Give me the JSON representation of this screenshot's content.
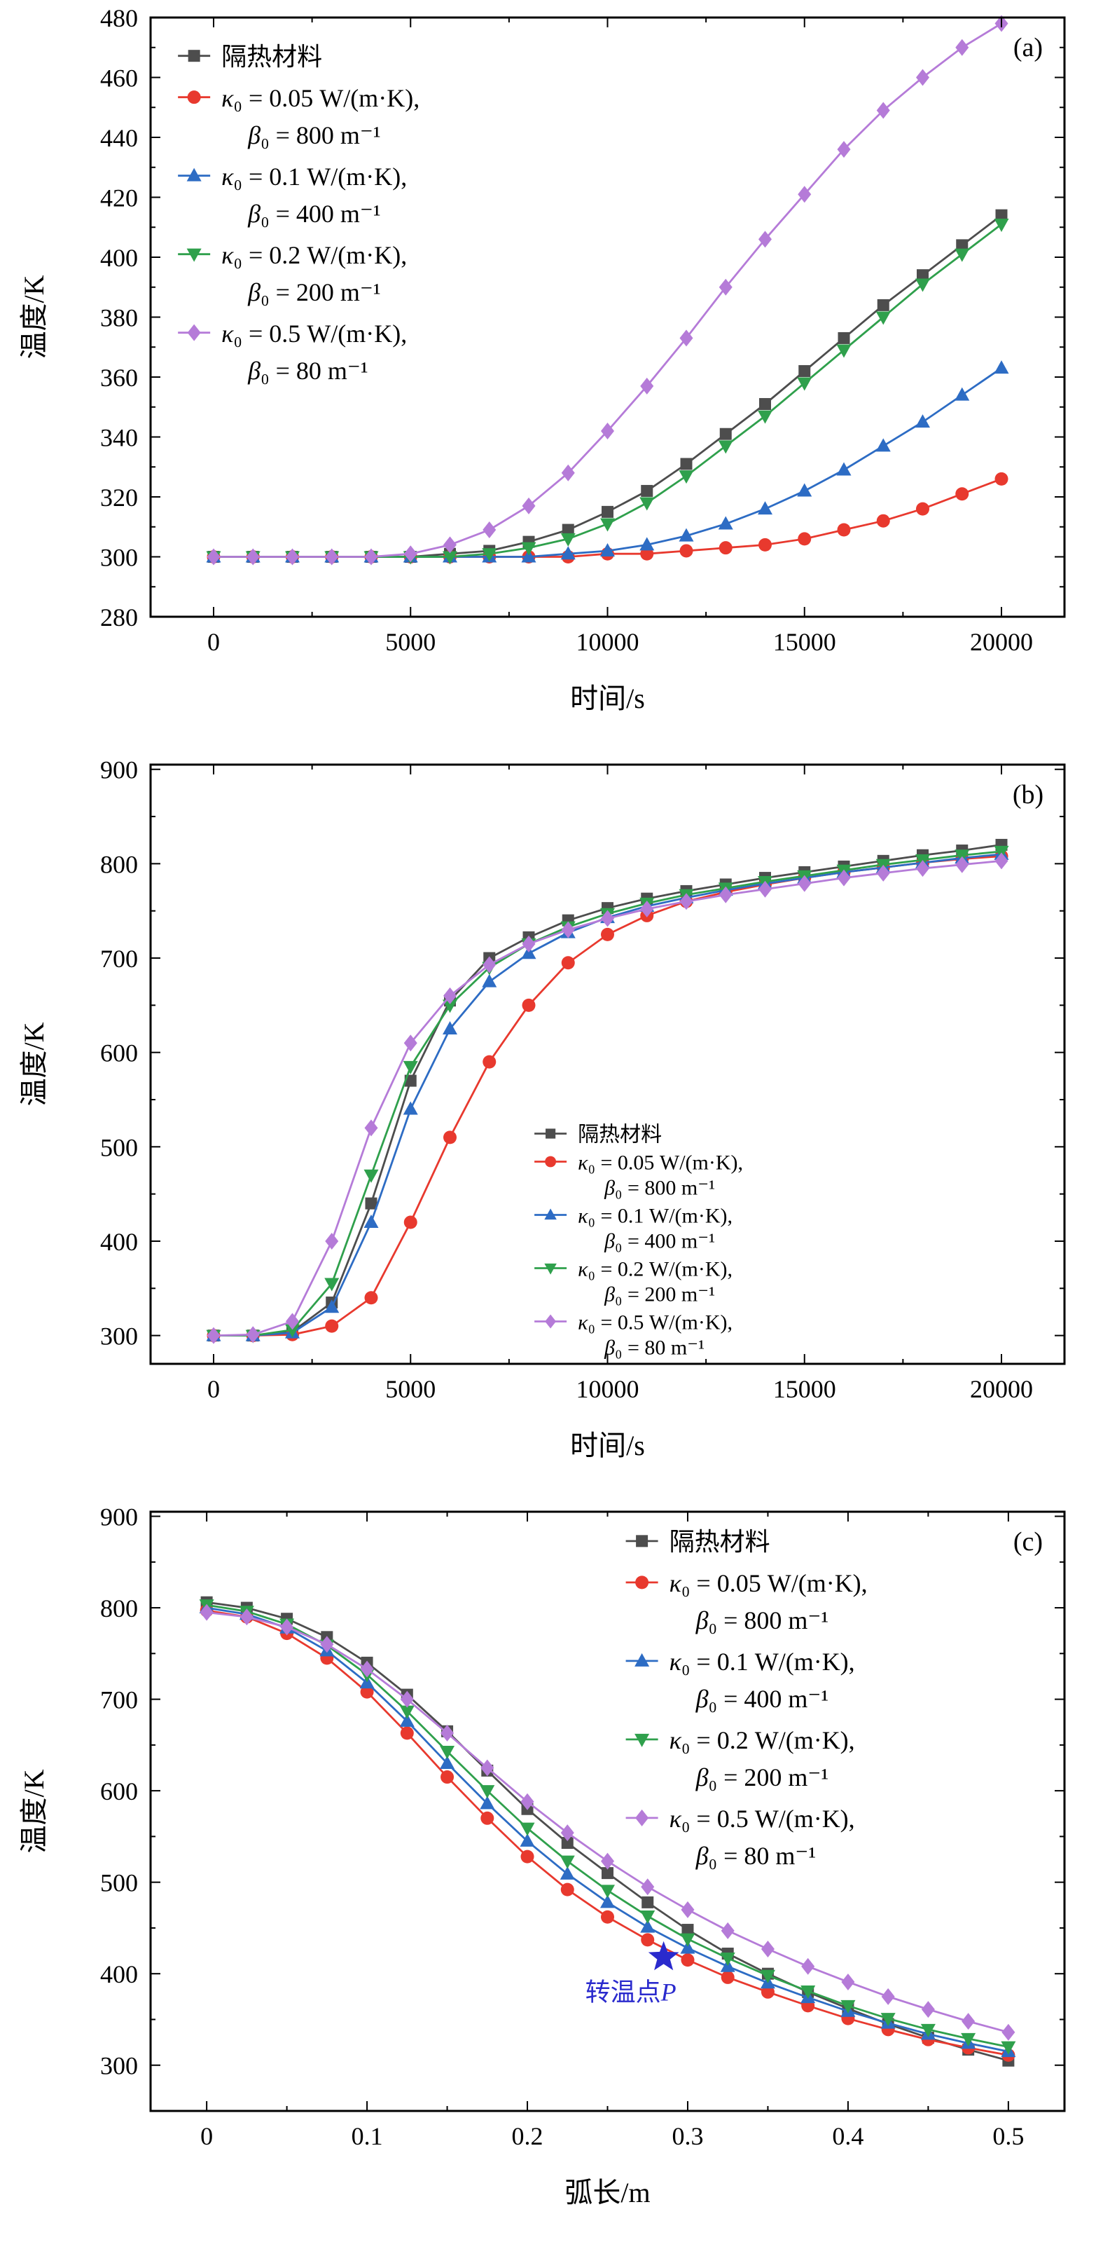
{
  "figure": {
    "background": "#ffffff",
    "axis_color": "#000000",
    "annotation_color": "#2a2acd"
  },
  "chart_data": [
    {
      "tag": "(a)",
      "type": "line",
      "xlabel": "时间/s",
      "ylabel": "温度/K",
      "xlim": [
        -1600,
        21600
      ],
      "ylim": [
        280,
        480
      ],
      "xticks": [
        0,
        5000,
        10000,
        15000,
        20000
      ],
      "yticks": [
        280,
        300,
        320,
        340,
        360,
        380,
        400,
        420,
        440,
        460,
        480
      ],
      "x_minor": 2500,
      "y_minor": 10,
      "x": [
        0,
        1000,
        2000,
        3000,
        4000,
        5000,
        6000,
        7000,
        8000,
        9000,
        10000,
        11000,
        12000,
        13000,
        14000,
        15000,
        16000,
        17000,
        18000,
        19000,
        20000
      ],
      "series": [
        {
          "name": "隔热材料",
          "color": "#4d4d4d",
          "marker": "square",
          "values": [
            300,
            300,
            300,
            300,
            300,
            300,
            301,
            302,
            305,
            309,
            315,
            322,
            331,
            341,
            351,
            362,
            373,
            384,
            394,
            404,
            414
          ]
        },
        {
          "name": "κ₀ = 0.05 W/(m·K), β₀ = 800 m⁻¹",
          "color": "#e8392e",
          "marker": "circle",
          "values": [
            300,
            300,
            300,
            300,
            300,
            300,
            300,
            300,
            300,
            300,
            301,
            301,
            302,
            303,
            304,
            306,
            309,
            312,
            316,
            321,
            326
          ]
        },
        {
          "name": "κ₀ = 0.1 W/(m·K), β₀ = 400 m⁻¹",
          "color": "#2d6cc4",
          "marker": "triangle-up",
          "values": [
            300,
            300,
            300,
            300,
            300,
            300,
            300,
            300,
            300,
            301,
            302,
            304,
            307,
            311,
            316,
            322,
            329,
            337,
            345,
            354,
            363
          ]
        },
        {
          "name": "κ₀ = 0.2 W/(m·K), β₀ = 200 m⁻¹",
          "color": "#2fa04c",
          "marker": "triangle-down",
          "values": [
            300,
            300,
            300,
            300,
            300,
            300,
            300,
            301,
            303,
            306,
            311,
            318,
            327,
            337,
            347,
            358,
            369,
            380,
            391,
            401,
            411
          ]
        },
        {
          "name": "κ₀ = 0.5 W/(m·K), β₀ = 80 m⁻¹",
          "color": "#b57bd8",
          "marker": "diamond",
          "values": [
            300,
            300,
            300,
            300,
            300,
            301,
            304,
            309,
            317,
            328,
            342,
            357,
            373,
            390,
            406,
            421,
            436,
            449,
            460,
            470,
            478
          ]
        }
      ],
      "legend": {
        "x": 0.03,
        "y": 0.045,
        "font": 36,
        "line_h": 53,
        "item_gap": 6,
        "items": [
          {
            "series": 0,
            "lines": [
              "隔热材料"
            ]
          },
          {
            "series": 1,
            "lines": [
              "κ₀ = 0.05 W/(m·K),",
              "β₀ = 800 m⁻¹"
            ]
          },
          {
            "series": 2,
            "lines": [
              "κ₀ = 0.1 W/(m·K),",
              "β₀ = 400 m⁻¹"
            ]
          },
          {
            "series": 3,
            "lines": [
              "κ₀ = 0.2 W/(m·K),",
              "β₀ = 200 m⁻¹"
            ]
          },
          {
            "series": 4,
            "lines": [
              "κ₀ = 0.5 W/(m·K),",
              "β₀ = 80 m⁻¹"
            ]
          }
        ]
      }
    },
    {
      "tag": "(b)",
      "type": "line",
      "xlabel": "时间/s",
      "ylabel": "温度/K",
      "xlim": [
        -1600,
        21600
      ],
      "ylim": [
        270,
        905
      ],
      "xticks": [
        0,
        5000,
        10000,
        15000,
        20000
      ],
      "yticks": [
        300,
        400,
        500,
        600,
        700,
        800,
        900
      ],
      "x_minor": 2500,
      "y_minor": 50,
      "x": [
        0,
        1000,
        2000,
        3000,
        4000,
        5000,
        6000,
        7000,
        8000,
        9000,
        10000,
        11000,
        12000,
        13000,
        14000,
        15000,
        16000,
        17000,
        18000,
        19000,
        20000
      ],
      "series": [
        {
          "name": "隔热材料",
          "color": "#4d4d4d",
          "marker": "square",
          "values": [
            300,
            300,
            304,
            335,
            440,
            570,
            655,
            700,
            722,
            740,
            753,
            763,
            771,
            778,
            785,
            791,
            797,
            803,
            809,
            814,
            820
          ]
        },
        {
          "name": "κ₀ = 0.05 W/(m·K), β₀ = 800 m⁻¹",
          "color": "#e8392e",
          "marker": "circle",
          "values": [
            300,
            300,
            301,
            310,
            340,
            420,
            510,
            590,
            650,
            695,
            725,
            745,
            760,
            770,
            778,
            785,
            791,
            796,
            801,
            805,
            808
          ]
        },
        {
          "name": "κ₀ = 0.1 W/(m·K), β₀ = 400 m⁻¹",
          "color": "#2d6cc4",
          "marker": "triangle-up",
          "values": [
            300,
            300,
            303,
            330,
            420,
            540,
            625,
            675,
            705,
            727,
            743,
            755,
            764,
            772,
            779,
            785,
            791,
            796,
            801,
            806,
            810
          ]
        },
        {
          "name": "κ₀ = 0.2 W/(m·K), β₀ = 200 m⁻¹",
          "color": "#2fa04c",
          "marker": "triangle-down",
          "values": [
            300,
            300,
            306,
            355,
            470,
            585,
            650,
            690,
            715,
            733,
            747,
            758,
            767,
            774,
            781,
            787,
            793,
            799,
            804,
            809,
            813
          ]
        },
        {
          "name": "κ₀ = 0.5 W/(m·K), β₀ = 80 m⁻¹",
          "color": "#b57bd8",
          "marker": "diamond",
          "values": [
            300,
            301,
            315,
            400,
            520,
            610,
            660,
            693,
            715,
            730,
            742,
            752,
            760,
            767,
            773,
            779,
            785,
            790,
            795,
            799,
            803
          ]
        }
      ],
      "legend": {
        "x": 0.42,
        "y": 0.6,
        "font": 30,
        "line_h": 36,
        "item_gap": 4,
        "items": [
          {
            "series": 0,
            "lines": [
              "隔热材料"
            ]
          },
          {
            "series": 1,
            "lines": [
              "κ₀ = 0.05 W/(m·K),",
              "β₀ = 800 m⁻¹"
            ]
          },
          {
            "series": 2,
            "lines": [
              "κ₀ = 0.1 W/(m·K),",
              "β₀ = 400 m⁻¹"
            ]
          },
          {
            "series": 3,
            "lines": [
              "κ₀ = 0.2 W/(m·K),",
              "β₀ = 200 m⁻¹"
            ]
          },
          {
            "series": 4,
            "lines": [
              "κ₀ = 0.5 W/(m·K),",
              "β₀ = 80 m⁻¹"
            ]
          }
        ]
      }
    },
    {
      "tag": "(c)",
      "type": "line",
      "xlabel": "弧长/m",
      "ylabel": "温度/K",
      "xlim": [
        -0.035,
        0.535
      ],
      "ylim": [
        250,
        905
      ],
      "xticks": [
        0,
        0.1,
        0.2,
        0.3,
        0.4,
        0.5
      ],
      "yticks": [
        300,
        400,
        500,
        600,
        700,
        800,
        900
      ],
      "x_minor": 0.05,
      "y_minor": 50,
      "x": [
        0,
        0.025,
        0.05,
        0.075,
        0.1,
        0.125,
        0.15,
        0.175,
        0.2,
        0.225,
        0.25,
        0.275,
        0.3,
        0.325,
        0.35,
        0.375,
        0.4,
        0.425,
        0.45,
        0.475,
        0.5
      ],
      "series": [
        {
          "name": "隔热材料",
          "color": "#4d4d4d",
          "marker": "square",
          "values": [
            806,
            800,
            788,
            768,
            740,
            705,
            665,
            622,
            580,
            543,
            510,
            478,
            448,
            422,
            400,
            380,
            362,
            345,
            330,
            317,
            305
          ]
        },
        {
          "name": "κ₀ = 0.05 W/(m·K), β₀ = 800 m⁻¹",
          "color": "#e8392e",
          "marker": "circle",
          "values": [
            797,
            790,
            772,
            745,
            708,
            663,
            615,
            570,
            528,
            492,
            462,
            437,
            415,
            396,
            380,
            365,
            351,
            339,
            328,
            319,
            311
          ]
        },
        {
          "name": "κ₀ = 0.1 W/(m·K), β₀ = 400 m⁻¹",
          "color": "#2d6cc4",
          "marker": "triangle-up",
          "values": [
            800,
            793,
            778,
            753,
            718,
            676,
            630,
            586,
            545,
            509,
            478,
            451,
            428,
            408,
            390,
            374,
            359,
            346,
            334,
            324,
            315
          ]
        },
        {
          "name": "κ₀ = 0.2 W/(m·K), β₀ = 200 m⁻¹",
          "color": "#2fa04c",
          "marker": "triangle-down",
          "values": [
            803,
            796,
            782,
            759,
            727,
            687,
            643,
            600,
            559,
            523,
            491,
            463,
            438,
            417,
            398,
            381,
            365,
            351,
            339,
            329,
            320
          ]
        },
        {
          "name": "κ₀ = 0.5 W/(m·K), β₀ = 80 m⁻¹",
          "color": "#b57bd8",
          "marker": "diamond",
          "values": [
            795,
            790,
            779,
            760,
            733,
            700,
            663,
            625,
            588,
            554,
            523,
            495,
            470,
            447,
            427,
            408,
            391,
            375,
            361,
            348,
            336
          ]
        }
      ],
      "legend": {
        "x": 0.52,
        "y": 0.03,
        "font": 36,
        "line_h": 53,
        "item_gap": 6,
        "items": [
          {
            "series": 0,
            "lines": [
              "隔热材料"
            ]
          },
          {
            "series": 1,
            "lines": [
              "κ₀ = 0.05 W/(m·K),",
              "β₀ = 800 m⁻¹"
            ]
          },
          {
            "series": 2,
            "lines": [
              "κ₀ = 0.1 W/(m·K),",
              "β₀ = 400 m⁻¹"
            ]
          },
          {
            "series": 3,
            "lines": [
              "κ₀ = 0.2 W/(m·K),",
              "β₀ = 200 m⁻¹"
            ]
          },
          {
            "series": 4,
            "lines": [
              "κ₀ = 0.5 W/(m·K),",
              "β₀ = 80 m⁻¹"
            ]
          }
        ]
      },
      "annotation": {
        "x": 0.285,
        "y": 418,
        "text": "转温点",
        "text_italic": "P",
        "color": "#2a2acd"
      }
    }
  ]
}
